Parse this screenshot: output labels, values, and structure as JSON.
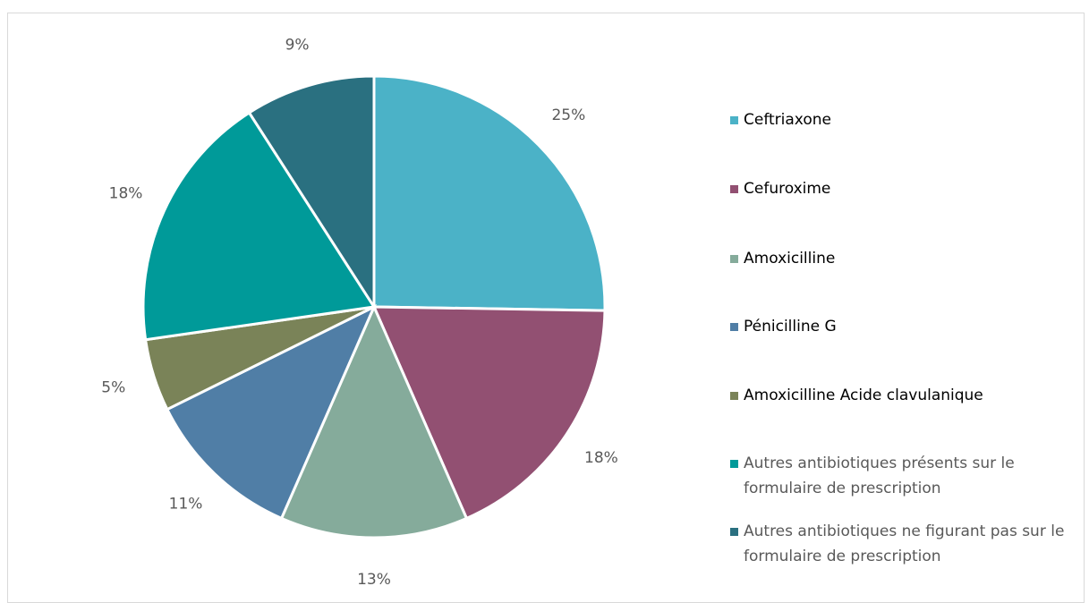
{
  "chart_data": {
    "type": "pie",
    "categories": [
      "Ceftriaxone",
      "Cefuroxime",
      "Amoxicilline",
      "Pénicilline G",
      "Amoxicilline Acide clavulanique",
      "Autres antibiotiques présents sur le formulaire de prescription",
      "Autres antibiotiques ne figurant pas sur le formulaire de prescription"
    ],
    "values": [
      25,
      18,
      13,
      11,
      5,
      18,
      9
    ],
    "value_labels": [
      "25%",
      "18%",
      "13%",
      "11%",
      "5%",
      "18%",
      "9%"
    ],
    "colors": [
      "#4bb2c7",
      "#925072",
      "#85ab9b",
      "#507ea6",
      "#7a8358",
      "#009a99",
      "#2a7080"
    ],
    "legend": "right"
  }
}
